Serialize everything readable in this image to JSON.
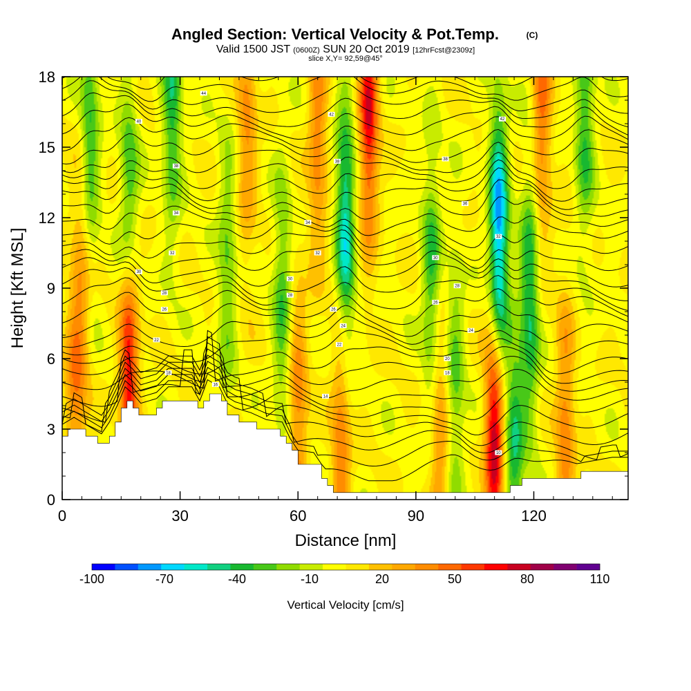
{
  "chart_data": {
    "type": "heatmap",
    "title": "Angled Section: Vertical Velocity & Pot.Temp.",
    "title_units": "(C)",
    "subtitle_prefix": "Valid 1500 JST",
    "subtitle_utc": "(0600Z)",
    "subtitle_date": "SUN 20 Oct 2019",
    "subtitle_fcst": "[12hrFcst@2309z]",
    "slice_label": "slice X,Y= 92,59@45°",
    "xlabel": "Distance [nm]",
    "ylabel": "Height [Kft MSL]",
    "xlim": [
      0,
      144
    ],
    "ylim": [
      0,
      18
    ],
    "xticks": [
      0,
      30,
      60,
      90,
      120
    ],
    "yticks": [
      0,
      3,
      6,
      9,
      12,
      15,
      18
    ],
    "colorbar": {
      "label": "Vertical Velocity [cm/s]",
      "tick_labels": [
        "-100",
        "-70",
        "-40",
        "-10",
        "20",
        "50",
        "80",
        "110"
      ],
      "tick_values": [
        -100,
        -70,
        -40,
        -10,
        20,
        50,
        80,
        110
      ],
      "levels": [
        -100,
        -90,
        -80,
        -70,
        -60,
        -50,
        -40,
        -30,
        -20,
        -10,
        0,
        10,
        20,
        30,
        40,
        50,
        60,
        70,
        80,
        90,
        100,
        110
      ],
      "colors": [
        "#0000ff",
        "#0050ff",
        "#0098ff",
        "#00d8ff",
        "#00e8c8",
        "#10d080",
        "#18b830",
        "#48c818",
        "#90dc00",
        "#c8ec00",
        "#ffff00",
        "#ffe800",
        "#ffc000",
        "#ffa800",
        "#ff8c00",
        "#ff6800",
        "#ff3800",
        "#ff0000",
        "#c80020",
        "#a00048",
        "#800070",
        "#600090"
      ]
    },
    "terrain_kft": [
      [
        0,
        2.7
      ],
      [
        3,
        3.0
      ],
      [
        6,
        2.7
      ],
      [
        10,
        2.3
      ],
      [
        12,
        2.8
      ],
      [
        14,
        3.5
      ],
      [
        15,
        3.9
      ],
      [
        16,
        4.3
      ],
      [
        18,
        4.0
      ],
      [
        20,
        3.6
      ],
      [
        24,
        3.8
      ],
      [
        27,
        4.3
      ],
      [
        33,
        4.3
      ],
      [
        35,
        3.7
      ],
      [
        37,
        4.6
      ],
      [
        40,
        4.3
      ],
      [
        42,
        3.6
      ],
      [
        44,
        3.4
      ],
      [
        48,
        3.2
      ],
      [
        52,
        2.9
      ],
      [
        56,
        2.8
      ],
      [
        58,
        2.1
      ],
      [
        60,
        1.6
      ],
      [
        64,
        1.5
      ],
      [
        66,
        1.0
      ],
      [
        68,
        0.4
      ],
      [
        74,
        0.3
      ],
      [
        90,
        0.3
      ],
      [
        105,
        0.3
      ],
      [
        112,
        0.3
      ],
      [
        114,
        0.6
      ],
      [
        118,
        0.8
      ],
      [
        124,
        0.8
      ],
      [
        130,
        1.0
      ],
      [
        140,
        1.3
      ],
      [
        144,
        1.3
      ]
    ],
    "updrafts": [
      {
        "x": 17,
        "z": 6.5,
        "w": 90
      },
      {
        "x": 78,
        "z": 16.5,
        "w": 70
      },
      {
        "x": 110,
        "z": 2.7,
        "w": 85
      },
      {
        "x": 65,
        "z": 15.5,
        "w": 40
      },
      {
        "x": 122,
        "z": 16.5,
        "w": 45
      },
      {
        "x": 71,
        "z": 2.5,
        "w": 45
      },
      {
        "x": 60,
        "z": 3.5,
        "w": 40
      },
      {
        "x": 128,
        "z": 3.0,
        "w": 40
      },
      {
        "x": 47,
        "z": 16.0,
        "w": 35
      },
      {
        "x": 96,
        "z": 2.5,
        "w": 35
      },
      {
        "x": 3,
        "z": 3.5,
        "w": 35
      },
      {
        "x": 5,
        "z": 9.0,
        "w": 30
      }
    ],
    "downdrafts": [
      {
        "x": 17,
        "z": 11.5,
        "w": -60
      },
      {
        "x": 28,
        "z": 17.0,
        "w": -45
      },
      {
        "x": 72,
        "z": 11.5,
        "w": -65
      },
      {
        "x": 111,
        "z": 11.0,
        "w": -90
      },
      {
        "x": 119,
        "z": 8.5,
        "w": -50
      },
      {
        "x": 94,
        "z": 9.5,
        "w": -40
      },
      {
        "x": 7,
        "z": 15.5,
        "w": -40
      },
      {
        "x": 56,
        "z": 8.5,
        "w": -35
      },
      {
        "x": 133,
        "z": 16.5,
        "w": -40
      },
      {
        "x": 115,
        "z": 2.0,
        "w": -45
      },
      {
        "x": 42,
        "z": 10.0,
        "w": -30
      },
      {
        "x": 100,
        "z": 5.0,
        "w": -30
      }
    ],
    "isentrope_count": 34,
    "isentrope_labels": [
      {
        "x": 36,
        "z": 17.3,
        "text": "44"
      },
      {
        "x": 19.5,
        "z": 16.1,
        "text": "40"
      },
      {
        "x": 68.5,
        "z": 16.4,
        "text": "42"
      },
      {
        "x": 112,
        "z": 16.2,
        "text": "42"
      },
      {
        "x": 29,
        "z": 14.2,
        "text": "38"
      },
      {
        "x": 70,
        "z": 14.4,
        "text": "38"
      },
      {
        "x": 97.5,
        "z": 14.5,
        "text": "38"
      },
      {
        "x": 29,
        "z": 12.2,
        "text": "34"
      },
      {
        "x": 62.5,
        "z": 11.8,
        "text": "34"
      },
      {
        "x": 102.5,
        "z": 12.6,
        "text": "36"
      },
      {
        "x": 28,
        "z": 10.5,
        "text": "32"
      },
      {
        "x": 65,
        "z": 10.5,
        "text": "32"
      },
      {
        "x": 111,
        "z": 11.2,
        "text": "32"
      },
      {
        "x": 19.5,
        "z": 9.7,
        "text": "30"
      },
      {
        "x": 58,
        "z": 9.4,
        "text": "30"
      },
      {
        "x": 95,
        "z": 10.3,
        "text": "30"
      },
      {
        "x": 26,
        "z": 8.8,
        "text": "28"
      },
      {
        "x": 58,
        "z": 8.7,
        "text": "28"
      },
      {
        "x": 100.5,
        "z": 9.1,
        "text": "28"
      },
      {
        "x": 26,
        "z": 8.1,
        "text": "26"
      },
      {
        "x": 69,
        "z": 8.1,
        "text": "26"
      },
      {
        "x": 95,
        "z": 8.4,
        "text": "26"
      },
      {
        "x": 71.5,
        "z": 7.4,
        "text": "24"
      },
      {
        "x": 104,
        "z": 7.2,
        "text": "24"
      },
      {
        "x": 24,
        "z": 6.8,
        "text": "22"
      },
      {
        "x": 70.5,
        "z": 6.6,
        "text": "22"
      },
      {
        "x": 98,
        "z": 6.0,
        "text": "20"
      },
      {
        "x": 27,
        "z": 5.4,
        "text": "18"
      },
      {
        "x": 98,
        "z": 5.4,
        "text": "18"
      },
      {
        "x": 39,
        "z": 4.9,
        "text": "16"
      },
      {
        "x": 67,
        "z": 4.4,
        "text": "14"
      },
      {
        "x": 111,
        "z": 2.0,
        "text": "10"
      }
    ]
  }
}
